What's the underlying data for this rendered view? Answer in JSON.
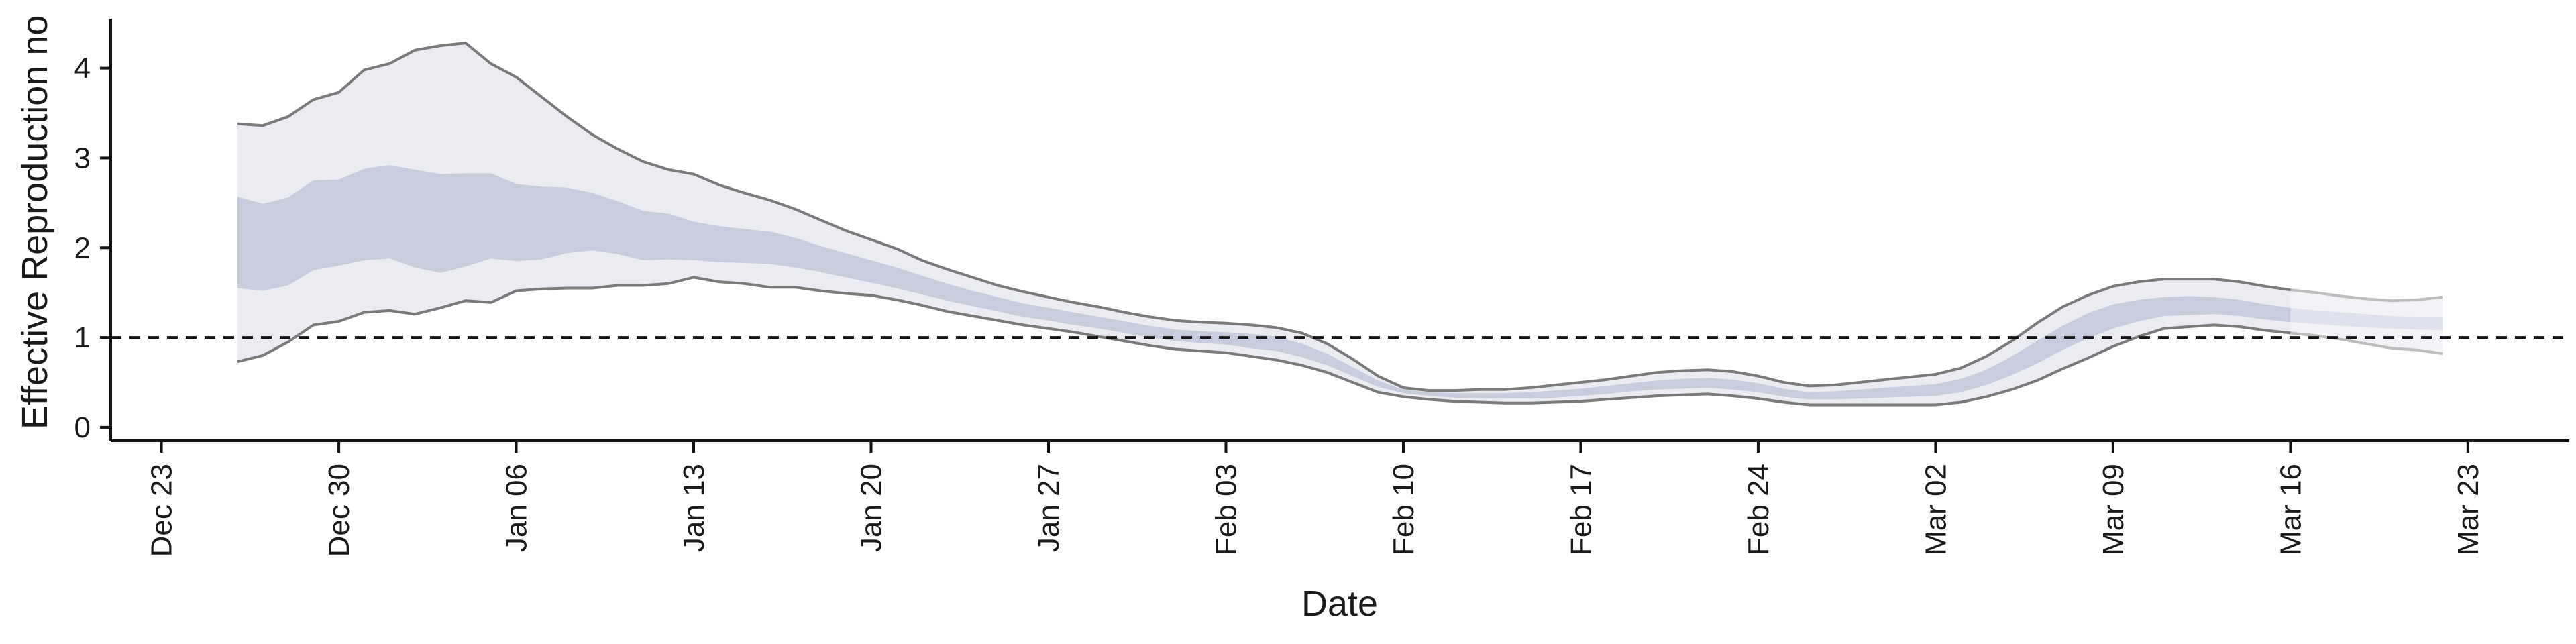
{
  "chart_data": {
    "type": "area",
    "xlabel": "Date",
    "ylabel": "Effective Reproduction no",
    "x_ticks": [
      "Dec 23",
      "Dec 30",
      "Jan 06",
      "Jan 13",
      "Jan 20",
      "Jan 27",
      "Feb 03",
      "Feb 10",
      "Feb 17",
      "Feb 24",
      "Mar 02",
      "Mar 09",
      "Mar 16",
      "Mar 23"
    ],
    "y_ticks": [
      "0",
      "1",
      "2",
      "3",
      "4"
    ],
    "x_range": [
      "2019-12-21",
      "2020-03-27"
    ],
    "ylim": [
      -0.15,
      4.55
    ],
    "reference_line": {
      "y": 1,
      "style": "dashed"
    },
    "grid": false,
    "colors": {
      "band_outer": "#ebebf2",
      "band_inner": "#c7cddc",
      "band_projection": "#f3f3f7",
      "band_projection_inner": "#dfe2ec",
      "bound_line": "#7a7a7a"
    },
    "estimate_end": "2020-03-16",
    "bands": [
      {
        "date": "2019-12-26",
        "lo90": 0.73,
        "lo50": 1.55,
        "hi50": 2.57,
        "hi90": 3.38
      },
      {
        "date": "2019-12-27",
        "lo90": 0.8,
        "lo50": 1.52,
        "hi50": 2.49,
        "hi90": 3.36
      },
      {
        "date": "2019-12-28",
        "lo90": 0.95,
        "lo50": 1.58,
        "hi50": 2.56,
        "hi90": 3.46
      },
      {
        "date": "2019-12-29",
        "lo90": 1.14,
        "lo50": 1.75,
        "hi50": 2.75,
        "hi90": 3.65
      },
      {
        "date": "2019-12-30",
        "lo90": 1.18,
        "lo50": 1.8,
        "hi50": 2.76,
        "hi90": 3.73
      },
      {
        "date": "2019-12-31",
        "lo90": 1.28,
        "lo50": 1.86,
        "hi50": 2.88,
        "hi90": 3.98
      },
      {
        "date": "2020-01-01",
        "lo90": 1.3,
        "lo50": 1.88,
        "hi50": 2.92,
        "hi90": 4.05
      },
      {
        "date": "2020-01-02",
        "lo90": 1.26,
        "lo50": 1.78,
        "hi50": 2.87,
        "hi90": 4.2
      },
      {
        "date": "2020-01-03",
        "lo90": 1.33,
        "lo50": 1.72,
        "hi50": 2.82,
        "hi90": 4.25
      },
      {
        "date": "2020-01-04",
        "lo90": 1.41,
        "lo50": 1.79,
        "hi50": 2.83,
        "hi90": 4.28
      },
      {
        "date": "2020-01-05",
        "lo90": 1.39,
        "lo50": 1.88,
        "hi50": 2.83,
        "hi90": 4.05
      },
      {
        "date": "2020-01-06",
        "lo90": 1.52,
        "lo50": 1.85,
        "hi50": 2.71,
        "hi90": 3.9
      },
      {
        "date": "2020-01-07",
        "lo90": 1.54,
        "lo50": 1.87,
        "hi50": 2.68,
        "hi90": 3.68
      },
      {
        "date": "2020-01-08",
        "lo90": 1.55,
        "lo50": 1.94,
        "hi50": 2.67,
        "hi90": 3.46
      },
      {
        "date": "2020-01-09",
        "lo90": 1.55,
        "lo50": 1.97,
        "hi50": 2.61,
        "hi90": 3.26
      },
      {
        "date": "2020-01-10",
        "lo90": 1.58,
        "lo50": 1.93,
        "hi50": 2.52,
        "hi90": 3.1
      },
      {
        "date": "2020-01-11",
        "lo90": 1.58,
        "lo50": 1.86,
        "hi50": 2.41,
        "hi90": 2.96
      },
      {
        "date": "2020-01-12",
        "lo90": 1.6,
        "lo50": 1.87,
        "hi50": 2.38,
        "hi90": 2.87
      },
      {
        "date": "2020-01-13",
        "lo90": 1.67,
        "lo50": 1.86,
        "hi50": 2.29,
        "hi90": 2.82
      },
      {
        "date": "2020-01-14",
        "lo90": 1.62,
        "lo50": 1.84,
        "hi50": 2.24,
        "hi90": 2.7
      },
      {
        "date": "2020-01-15",
        "lo90": 1.6,
        "lo50": 1.83,
        "hi50": 2.21,
        "hi90": 2.61
      },
      {
        "date": "2020-01-16",
        "lo90": 1.56,
        "lo50": 1.82,
        "hi50": 2.18,
        "hi90": 2.53
      },
      {
        "date": "2020-01-17",
        "lo90": 1.56,
        "lo50": 1.78,
        "hi50": 2.11,
        "hi90": 2.43
      },
      {
        "date": "2020-01-18",
        "lo90": 1.52,
        "lo50": 1.73,
        "hi50": 2.02,
        "hi90": 2.31
      },
      {
        "date": "2020-01-19",
        "lo90": 1.49,
        "lo50": 1.67,
        "hi50": 1.94,
        "hi90": 2.19
      },
      {
        "date": "2020-01-20",
        "lo90": 1.47,
        "lo50": 1.61,
        "hi50": 1.86,
        "hi90": 2.09
      },
      {
        "date": "2020-01-21",
        "lo90": 1.42,
        "lo50": 1.55,
        "hi50": 1.78,
        "hi90": 1.99
      },
      {
        "date": "2020-01-22",
        "lo90": 1.36,
        "lo50": 1.48,
        "hi50": 1.69,
        "hi90": 1.86
      },
      {
        "date": "2020-01-23",
        "lo90": 1.29,
        "lo50": 1.41,
        "hi50": 1.6,
        "hi90": 1.76
      },
      {
        "date": "2020-01-24",
        "lo90": 1.24,
        "lo50": 1.35,
        "hi50": 1.52,
        "hi90": 1.67
      },
      {
        "date": "2020-01-25",
        "lo90": 1.19,
        "lo50": 1.29,
        "hi50": 1.45,
        "hi90": 1.58
      },
      {
        "date": "2020-01-26",
        "lo90": 1.14,
        "lo50": 1.23,
        "hi50": 1.38,
        "hi90": 1.51
      },
      {
        "date": "2020-01-27",
        "lo90": 1.1,
        "lo50": 1.19,
        "hi50": 1.33,
        "hi90": 1.45
      },
      {
        "date": "2020-01-28",
        "lo90": 1.06,
        "lo50": 1.14,
        "hi50": 1.28,
        "hi90": 1.39
      },
      {
        "date": "2020-01-29",
        "lo90": 1.01,
        "lo50": 1.1,
        "hi50": 1.23,
        "hi90": 1.34
      },
      {
        "date": "2020-01-30",
        "lo90": 0.96,
        "lo50": 1.05,
        "hi50": 1.18,
        "hi90": 1.28
      },
      {
        "date": "2020-01-31",
        "lo90": 0.91,
        "lo50": 1.0,
        "hi50": 1.13,
        "hi90": 1.23
      },
      {
        "date": "2020-02-01",
        "lo90": 0.87,
        "lo50": 0.96,
        "hi50": 1.09,
        "hi90": 1.19
      },
      {
        "date": "2020-02-02",
        "lo90": 0.85,
        "lo50": 0.94,
        "hi50": 1.07,
        "hi90": 1.17
      },
      {
        "date": "2020-02-03",
        "lo90": 0.83,
        "lo50": 0.92,
        "hi50": 1.06,
        "hi90": 1.16
      },
      {
        "date": "2020-02-04",
        "lo90": 0.79,
        "lo50": 0.88,
        "hi50": 1.04,
        "hi90": 1.14
      },
      {
        "date": "2020-02-05",
        "lo90": 0.75,
        "lo50": 0.85,
        "hi50": 1.01,
        "hi90": 1.11
      },
      {
        "date": "2020-02-06",
        "lo90": 0.69,
        "lo50": 0.78,
        "hi50": 0.93,
        "hi90": 1.05
      },
      {
        "date": "2020-02-07",
        "lo90": 0.61,
        "lo50": 0.69,
        "hi50": 0.82,
        "hi90": 0.93
      },
      {
        "date": "2020-02-08",
        "lo90": 0.5,
        "lo50": 0.57,
        "hi50": 0.67,
        "hi90": 0.76
      },
      {
        "date": "2020-02-09",
        "lo90": 0.39,
        "lo50": 0.45,
        "hi50": 0.52,
        "hi90": 0.57
      },
      {
        "date": "2020-02-10",
        "lo90": 0.34,
        "lo50": 0.38,
        "hi50": 0.42,
        "hi90": 0.44
      },
      {
        "date": "2020-02-11",
        "lo90": 0.31,
        "lo50": 0.35,
        "hi50": 0.39,
        "hi90": 0.41
      },
      {
        "date": "2020-02-12",
        "lo90": 0.29,
        "lo50": 0.33,
        "hi50": 0.38,
        "hi90": 0.41
      },
      {
        "date": "2020-02-13",
        "lo90": 0.28,
        "lo50": 0.32,
        "hi50": 0.38,
        "hi90": 0.42
      },
      {
        "date": "2020-02-14",
        "lo90": 0.27,
        "lo50": 0.32,
        "hi50": 0.38,
        "hi90": 0.42
      },
      {
        "date": "2020-02-15",
        "lo90": 0.27,
        "lo50": 0.32,
        "hi50": 0.39,
        "hi90": 0.44
      },
      {
        "date": "2020-02-16",
        "lo90": 0.28,
        "lo50": 0.33,
        "hi50": 0.41,
        "hi90": 0.47
      },
      {
        "date": "2020-02-17",
        "lo90": 0.29,
        "lo50": 0.35,
        "hi50": 0.43,
        "hi90": 0.5
      },
      {
        "date": "2020-02-18",
        "lo90": 0.31,
        "lo50": 0.37,
        "hi50": 0.46,
        "hi90": 0.53
      },
      {
        "date": "2020-02-19",
        "lo90": 0.33,
        "lo50": 0.4,
        "hi50": 0.49,
        "hi90": 0.57
      },
      {
        "date": "2020-02-20",
        "lo90": 0.35,
        "lo50": 0.42,
        "hi50": 0.52,
        "hi90": 0.61
      },
      {
        "date": "2020-02-21",
        "lo90": 0.36,
        "lo50": 0.43,
        "hi50": 0.54,
        "hi90": 0.63
      },
      {
        "date": "2020-02-22",
        "lo90": 0.37,
        "lo50": 0.44,
        "hi50": 0.55,
        "hi90": 0.64
      },
      {
        "date": "2020-02-23",
        "lo90": 0.35,
        "lo50": 0.42,
        "hi50": 0.53,
        "hi90": 0.62
      },
      {
        "date": "2020-02-24",
        "lo90": 0.32,
        "lo50": 0.39,
        "hi50": 0.49,
        "hi90": 0.57
      },
      {
        "date": "2020-02-25",
        "lo90": 0.28,
        "lo50": 0.34,
        "hi50": 0.43,
        "hi90": 0.5
      },
      {
        "date": "2020-02-26",
        "lo90": 0.25,
        "lo50": 0.31,
        "hi50": 0.39,
        "hi90": 0.46
      },
      {
        "date": "2020-02-27",
        "lo90": 0.25,
        "lo50": 0.31,
        "hi50": 0.4,
        "hi90": 0.47
      },
      {
        "date": "2020-02-28",
        "lo90": 0.25,
        "lo50": 0.32,
        "hi50": 0.42,
        "hi90": 0.5
      },
      {
        "date": "2020-02-29",
        "lo90": 0.25,
        "lo50": 0.33,
        "hi50": 0.44,
        "hi90": 0.53
      },
      {
        "date": "2020-03-01",
        "lo90": 0.25,
        "lo50": 0.34,
        "hi50": 0.46,
        "hi90": 0.56
      },
      {
        "date": "2020-03-02",
        "lo90": 0.25,
        "lo50": 0.35,
        "hi50": 0.48,
        "hi90": 0.59
      },
      {
        "date": "2020-03-03",
        "lo90": 0.28,
        "lo50": 0.39,
        "hi50": 0.54,
        "hi90": 0.66
      },
      {
        "date": "2020-03-04",
        "lo90": 0.34,
        "lo50": 0.47,
        "hi50": 0.64,
        "hi90": 0.79
      },
      {
        "date": "2020-03-05",
        "lo90": 0.42,
        "lo50": 0.58,
        "hi50": 0.79,
        "hi90": 0.96
      },
      {
        "date": "2020-03-06",
        "lo90": 0.52,
        "lo50": 0.71,
        "hi50": 0.96,
        "hi90": 1.16
      },
      {
        "date": "2020-03-07",
        "lo90": 0.65,
        "lo50": 0.86,
        "hi50": 1.13,
        "hi90": 1.34
      },
      {
        "date": "2020-03-08",
        "lo90": 0.77,
        "lo50": 0.99,
        "hi50": 1.27,
        "hi90": 1.47
      },
      {
        "date": "2020-03-09",
        "lo90": 0.9,
        "lo50": 1.1,
        "hi50": 1.37,
        "hi90": 1.57
      },
      {
        "date": "2020-03-10",
        "lo90": 1.01,
        "lo50": 1.18,
        "hi50": 1.42,
        "hi90": 1.62
      },
      {
        "date": "2020-03-11",
        "lo90": 1.1,
        "lo50": 1.24,
        "hi50": 1.45,
        "hi90": 1.65
      },
      {
        "date": "2020-03-12",
        "lo90": 1.12,
        "lo50": 1.25,
        "hi50": 1.46,
        "hi90": 1.65
      },
      {
        "date": "2020-03-13",
        "lo90": 1.14,
        "lo50": 1.26,
        "hi50": 1.45,
        "hi90": 1.65
      },
      {
        "date": "2020-03-14",
        "lo90": 1.12,
        "lo50": 1.24,
        "hi50": 1.42,
        "hi90": 1.62
      },
      {
        "date": "2020-03-15",
        "lo90": 1.08,
        "lo50": 1.2,
        "hi50": 1.37,
        "hi90": 1.57
      },
      {
        "date": "2020-03-16",
        "lo90": 1.05,
        "lo50": 1.17,
        "hi50": 1.33,
        "hi90": 1.53
      },
      {
        "date": "2020-03-17",
        "lo90": 1.02,
        "lo50": 1.15,
        "hi50": 1.3,
        "hi90": 1.5
      },
      {
        "date": "2020-03-18",
        "lo90": 0.98,
        "lo50": 1.13,
        "hi50": 1.28,
        "hi90": 1.46
      },
      {
        "date": "2020-03-19",
        "lo90": 0.93,
        "lo50": 1.11,
        "hi50": 1.26,
        "hi90": 1.43
      },
      {
        "date": "2020-03-20",
        "lo90": 0.88,
        "lo50": 1.1,
        "hi50": 1.24,
        "hi90": 1.41
      },
      {
        "date": "2020-03-21",
        "lo90": 0.86,
        "lo50": 1.09,
        "hi50": 1.23,
        "hi90": 1.42
      },
      {
        "date": "2020-03-22",
        "lo90": 0.82,
        "lo50": 1.08,
        "hi50": 1.23,
        "hi90": 1.45
      }
    ]
  }
}
